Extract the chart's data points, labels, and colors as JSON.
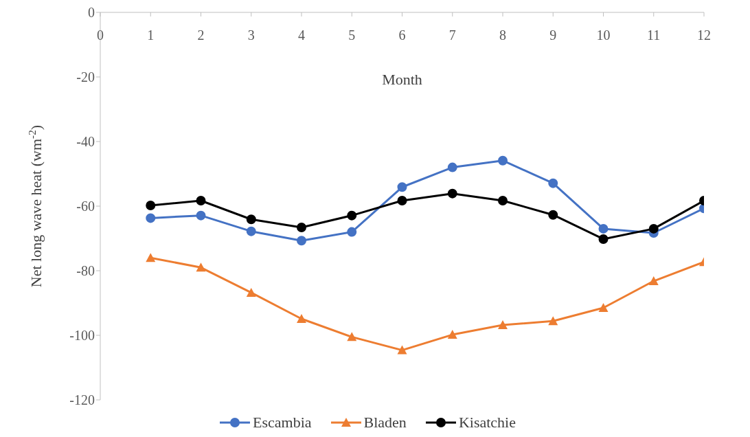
{
  "chart_data": {
    "type": "line",
    "xlabel": "Month",
    "ylabel": "Net long wave heat (wm$^{-2}$)",
    "x": [
      1,
      2,
      3,
      4,
      5,
      6,
      7,
      8,
      9,
      10,
      11,
      12
    ],
    "xlim": [
      0,
      12
    ],
    "xticks": [
      0,
      1,
      2,
      3,
      4,
      5,
      6,
      7,
      8,
      9,
      10,
      11,
      12
    ],
    "ylim": [
      -120,
      0
    ],
    "yticks": [
      0,
      -20,
      -40,
      -60,
      -80,
      -100,
      -120
    ],
    "grid": false,
    "legend": "bottom",
    "line_style": "solid",
    "series": [
      {
        "name": "Escambia",
        "color": "#4472c4",
        "marker": "circle",
        "values": [
          -63.7,
          -62.9,
          -67.8,
          -70.7,
          -68,
          -54.1,
          -48,
          -45.9,
          -52.9,
          -67,
          -68.3,
          -60.7
        ]
      },
      {
        "name": "Bladen",
        "color": "#ed7d31",
        "marker": "triangle",
        "values": [
          -76,
          -79,
          -86.8,
          -94.9,
          -100.5,
          -104.6,
          -99.8,
          -96.8,
          -95.6,
          -91.5,
          -83.2,
          -77.3
        ]
      },
      {
        "name": "Kisatchie",
        "color": "#000000",
        "marker": "circle",
        "values": [
          -59.8,
          -58.3,
          -64.1,
          -66.6,
          -62.9,
          -58.3,
          -56.1,
          -58.3,
          -62.7,
          -70.2,
          -67,
          -58.3
        ]
      }
    ]
  }
}
